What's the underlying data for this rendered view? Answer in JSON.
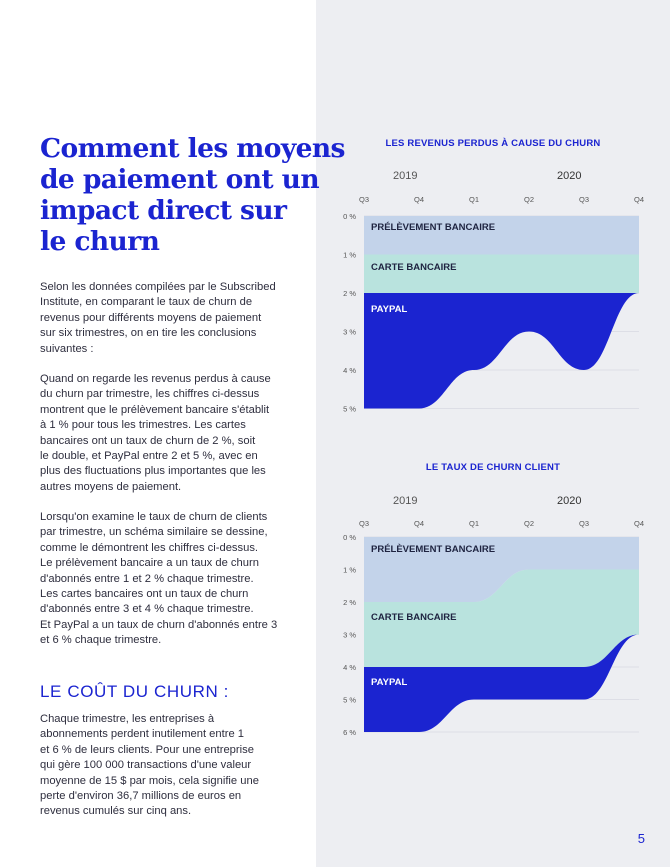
{
  "page": {
    "title_lines": [
      "Comment les moyens",
      "de paiement ont un",
      "impact direct sur",
      "le churn"
    ],
    "intro_lines": [
      "Selon les données compilées par le Subscribed",
      "Institute, en comparant le taux de churn de",
      "revenus pour différents moyens de paiement",
      "sur six trimestres, on en tire les conclusions",
      "suivantes :"
    ],
    "para2_lines": [
      "Quand on regarde les revenus perdus à cause",
      "du churn par trimestre, les chiffres ci-dessus",
      "montrent que le prélèvement bancaire s'établit",
      "à 1 % pour tous les trimestres. Les cartes",
      "bancaires ont un taux de churn de 2 %, soit",
      "le double, et PayPal entre 2 et 5 %, avec en",
      "plus des fluctuations plus importantes que les",
      "autres moyens de paiement."
    ],
    "para3_lines": [
      "Lorsqu'on examine le taux de churn de clients",
      "par trimestre, un schéma similaire se dessine,",
      "comme le démontrent les chiffres ci-dessus.",
      "Le prélèvement bancaire a un taux de churn",
      "d'abonnés entre 1 et 2 % chaque trimestre.",
      "Les cartes bancaires ont un taux de churn",
      "d'abonnés entre 3 et 4 % chaque trimestre.",
      "Et PayPal a un taux de churn d'abonnés entre 3",
      "et 6 % chaque trimestre."
    ],
    "section_heading": "LE COÛT DU CHURN :",
    "para4_lines": [
      "Chaque trimestre, les entreprises à",
      "abonnements perdent inutilement entre 1",
      "et 6 %  de leurs clients. Pour une entreprise",
      "qui gère 100 000 transactions d'une valeur",
      "moyenne de 15 $ par mois, cela signifie une",
      "perte d'environ 36,7 millions de euros en",
      "revenus cumulés sur cinq ans."
    ],
    "page_number": "5"
  },
  "colors": {
    "accent": "#1b24d0",
    "panel_bg": "#edeef2",
    "bank": "#c3d3ea",
    "card": "#b9e3de",
    "paypal": "#1b24d0"
  },
  "chart_data": [
    {
      "type": "area",
      "title": "LES REVENUS PERDUS À CAUSE DU CHURN",
      "years": [
        "2019",
        "2020"
      ],
      "categories": [
        "Q3",
        "Q4",
        "Q1",
        "Q2",
        "Q3",
        "Q4"
      ],
      "y_ticks": [
        "0 %",
        "1 %",
        "2 %",
        "3 %",
        "4 %",
        "5 %"
      ],
      "ylim": [
        0,
        5
      ],
      "y_inverted": true,
      "grid": true,
      "series": [
        {
          "name": "PRÉLÈVEMENT BANCAIRE",
          "values": [
            1,
            1,
            1,
            1,
            1,
            1
          ]
        },
        {
          "name": "CARTE BANCAIRE",
          "values": [
            2,
            2,
            2,
            2,
            2,
            2
          ]
        },
        {
          "name": "PAYPAL",
          "values": [
            5,
            5,
            4,
            3,
            4,
            2
          ]
        }
      ]
    },
    {
      "type": "area",
      "title": "LE TAUX DE CHURN CLIENT",
      "years": [
        "2019",
        "2020"
      ],
      "categories": [
        "Q3",
        "Q4",
        "Q1",
        "Q2",
        "Q3",
        "Q4"
      ],
      "y_ticks": [
        "0 %",
        "1 %",
        "2 %",
        "3 %",
        "4 %",
        "5 %",
        "6 %"
      ],
      "ylim": [
        0,
        6
      ],
      "y_inverted": true,
      "grid": true,
      "series": [
        {
          "name": "PRÉLÈVEMENT BANCAIRE",
          "values": [
            2,
            2,
            2,
            1,
            1,
            1
          ]
        },
        {
          "name": "CARTE BANCAIRE",
          "values": [
            4,
            4,
            4,
            4,
            4,
            3
          ]
        },
        {
          "name": "PAYPAL",
          "values": [
            6,
            6,
            5,
            5,
            5,
            3
          ]
        }
      ]
    }
  ]
}
